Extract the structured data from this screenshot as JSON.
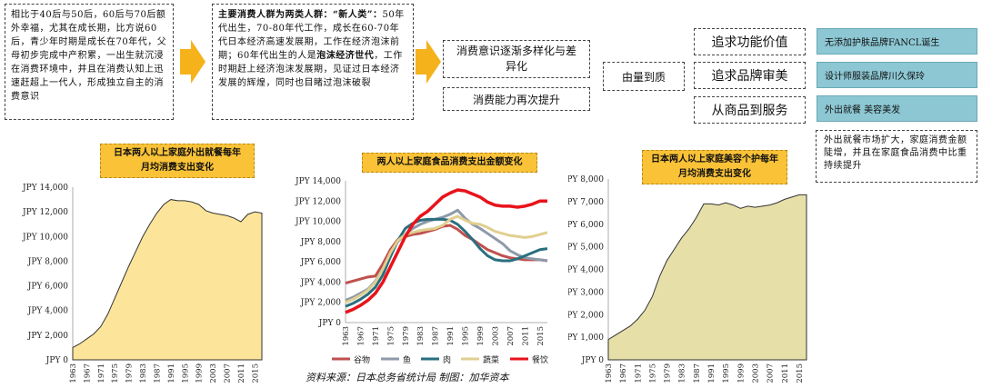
{
  "top": {
    "box1": "相比于40后与50后，60后与70后额外幸福，尤其在成长期，比方说60后，青少年时期是成长在70年代，父母初步完成中产积累，一出生就沉浸在消费环境中，并且在消费认知上迅速赶超上一代人，形成独立自主的消费意识",
    "box2_head": "主要消费人群为两类人群：“新人类”：",
    "box2_mid": "50年代出生，70-80年代工作，成长在60-70年代日本经济高速发展期，工作在经济泡沫前期；60年代出生的人是",
    "box2_bold2": "泡沫经济世代",
    "box2_tail": "，工作时期赶上经济泡沫发展期，见证过日本经济发展的辉煌，同时也目睹过泡沫破裂",
    "box3a": "消费意识逐渐多样化与差异化",
    "box3b": "消费能力再次提升",
    "box4": "由量到质",
    "mid_items": [
      "追求功能价值",
      "追求品牌审美",
      "从商品到服务"
    ],
    "teal_items": [
      "无添加护肤品牌FANCL诞生",
      "设计师服装品牌川久保玲",
      "外出就餐  美容美发"
    ],
    "note": "外出就餐市场扩大，家庭消费金额陡增，并且在家庭食品消费中比重持续提升"
  },
  "colors": {
    "arrow": "#f5b21b",
    "area1": "#fce59a",
    "area3": "#e6dfa8",
    "title_bg": "#f9c237"
  },
  "source": "资料来源：日本总务省统计局  制图：加华资本",
  "chart_data": [
    {
      "type": "area",
      "title": "日本两人以上家庭外出就餐每年月均消费支出变化",
      "x_ticks": [
        "1963",
        "1967",
        "1971",
        "1975",
        "1979",
        "1983",
        "1987",
        "1991",
        "1995",
        "1999",
        "2003",
        "2007",
        "2011",
        "2015"
      ],
      "y_ticks": [
        "JPY 0",
        "JPY 2,000",
        "JPY 4,000",
        "JPY 6,000",
        "JPY 8,000",
        "JPY 10,000",
        "JPY 12,000",
        "JPY 14,000"
      ],
      "ylim": [
        0,
        14000
      ],
      "x": [
        1963,
        1965,
        1967,
        1969,
        1971,
        1973,
        1975,
        1977,
        1979,
        1981,
        1983,
        1985,
        1987,
        1989,
        1991,
        1993,
        1995,
        1997,
        1999,
        2001,
        2003,
        2005,
        2007,
        2009,
        2011,
        2013,
        2015,
        2017
      ],
      "values": [
        1000,
        1300,
        1700,
        2100,
        2700,
        3700,
        5000,
        6300,
        7600,
        8800,
        10000,
        11000,
        11900,
        12600,
        13000,
        12900,
        12900,
        12800,
        12600,
        12100,
        11900,
        11800,
        11700,
        11500,
        11200,
        11800,
        12000,
        11900
      ]
    },
    {
      "type": "line",
      "title": "两人以上家庭食品消费支出金额变化",
      "x_ticks": [
        "1963",
        "1967",
        "1971",
        "1975",
        "1979",
        "1983",
        "1987",
        "1991",
        "1995",
        "1999",
        "2003",
        "2007",
        "2011",
        "2015"
      ],
      "y_ticks": [
        "JPY 0",
        "JPY 2,000",
        "JPY 4,000",
        "JPY 6,000",
        "JPY 8,000",
        "JPY 10,000",
        "JPY 12,000",
        "JPY 14,000"
      ],
      "ylim": [
        0,
        14000
      ],
      "x": [
        1963,
        1965,
        1967,
        1969,
        1971,
        1973,
        1975,
        1977,
        1979,
        1981,
        1983,
        1985,
        1987,
        1989,
        1991,
        1993,
        1995,
        1997,
        1999,
        2001,
        2003,
        2005,
        2007,
        2009,
        2011,
        2013,
        2015,
        2017
      ],
      "series": [
        {
          "name": "谷物",
          "color": "#c0504d",
          "values": [
            3900,
            4100,
            4300,
            4500,
            4600,
            5800,
            7200,
            8200,
            8500,
            8700,
            8800,
            9000,
            9200,
            9500,
            9600,
            9200,
            8600,
            8200,
            7700,
            7200,
            6900,
            6600,
            6400,
            6300,
            6200,
            6200,
            6200,
            6100
          ]
        },
        {
          "name": "鱼",
          "color": "#8e9aaa",
          "values": [
            2200,
            2500,
            2900,
            3300,
            4100,
            5300,
            6800,
            8000,
            8700,
            9300,
            9700,
            10000,
            10200,
            10400,
            10700,
            11100,
            10300,
            9700,
            9300,
            8800,
            8300,
            7800,
            7100,
            6700,
            6400,
            6300,
            6200,
            6100
          ]
        },
        {
          "name": "肉",
          "color": "#2a6f7f",
          "values": [
            1600,
            1900,
            2300,
            2800,
            3500,
            4700,
            6500,
            8100,
            9300,
            9800,
            10100,
            10200,
            10200,
            10200,
            10100,
            9700,
            9000,
            8200,
            7300,
            6600,
            6200,
            6100,
            6100,
            6300,
            6600,
            6900,
            7200,
            7300
          ]
        },
        {
          "name": "蔬菜",
          "color": "#e0cf8f",
          "values": [
            2000,
            2300,
            2700,
            3200,
            4000,
            5300,
            6900,
            8100,
            8700,
            8900,
            9100,
            9200,
            9300,
            9600,
            10200,
            10500,
            10100,
            9800,
            9700,
            9400,
            9000,
            8800,
            8600,
            8500,
            8400,
            8500,
            8700,
            8900
          ]
        },
        {
          "name": "餐饮",
          "color": "#e8131b",
          "values": [
            1000,
            1300,
            1700,
            2200,
            2900,
            4000,
            5500,
            7000,
            8500,
            9700,
            10500,
            11000,
            11700,
            12400,
            12800,
            13100,
            13000,
            12700,
            12400,
            11900,
            11600,
            11500,
            11500,
            11400,
            11500,
            11700,
            12000,
            12000
          ]
        }
      ]
    },
    {
      "type": "area",
      "title": "日本两人以上家庭美容个护每年月均消费支出变化",
      "x_ticks": [
        "1963",
        "1967",
        "1971",
        "1975",
        "1979",
        "1983",
        "1987",
        "1991",
        "1995",
        "1999",
        "2003",
        "2007",
        "2011",
        "2015"
      ],
      "y_ticks": [
        "JPY 0",
        "JPY 1,000",
        "JPY 2,000",
        "JPY 3,000",
        "JPY 4,000",
        "JPY 5,000",
        "JPY 6,000",
        "JPY 7,000",
        "JPY 8,000"
      ],
      "ylim": [
        0,
        8000
      ],
      "x": [
        1963,
        1965,
        1967,
        1969,
        1971,
        1973,
        1975,
        1977,
        1979,
        1981,
        1983,
        1985,
        1987,
        1989,
        1991,
        1993,
        1995,
        1997,
        1999,
        2001,
        2003,
        2005,
        2007,
        2009,
        2011,
        2013,
        2015,
        2017
      ],
      "values": [
        900,
        1100,
        1300,
        1500,
        1800,
        2200,
        2800,
        3700,
        4400,
        4900,
        5400,
        5800,
        6300,
        6900,
        6900,
        6850,
        6950,
        6850,
        6700,
        6800,
        6750,
        6800,
        6850,
        6950,
        7100,
        7200,
        7300,
        7300
      ]
    }
  ]
}
